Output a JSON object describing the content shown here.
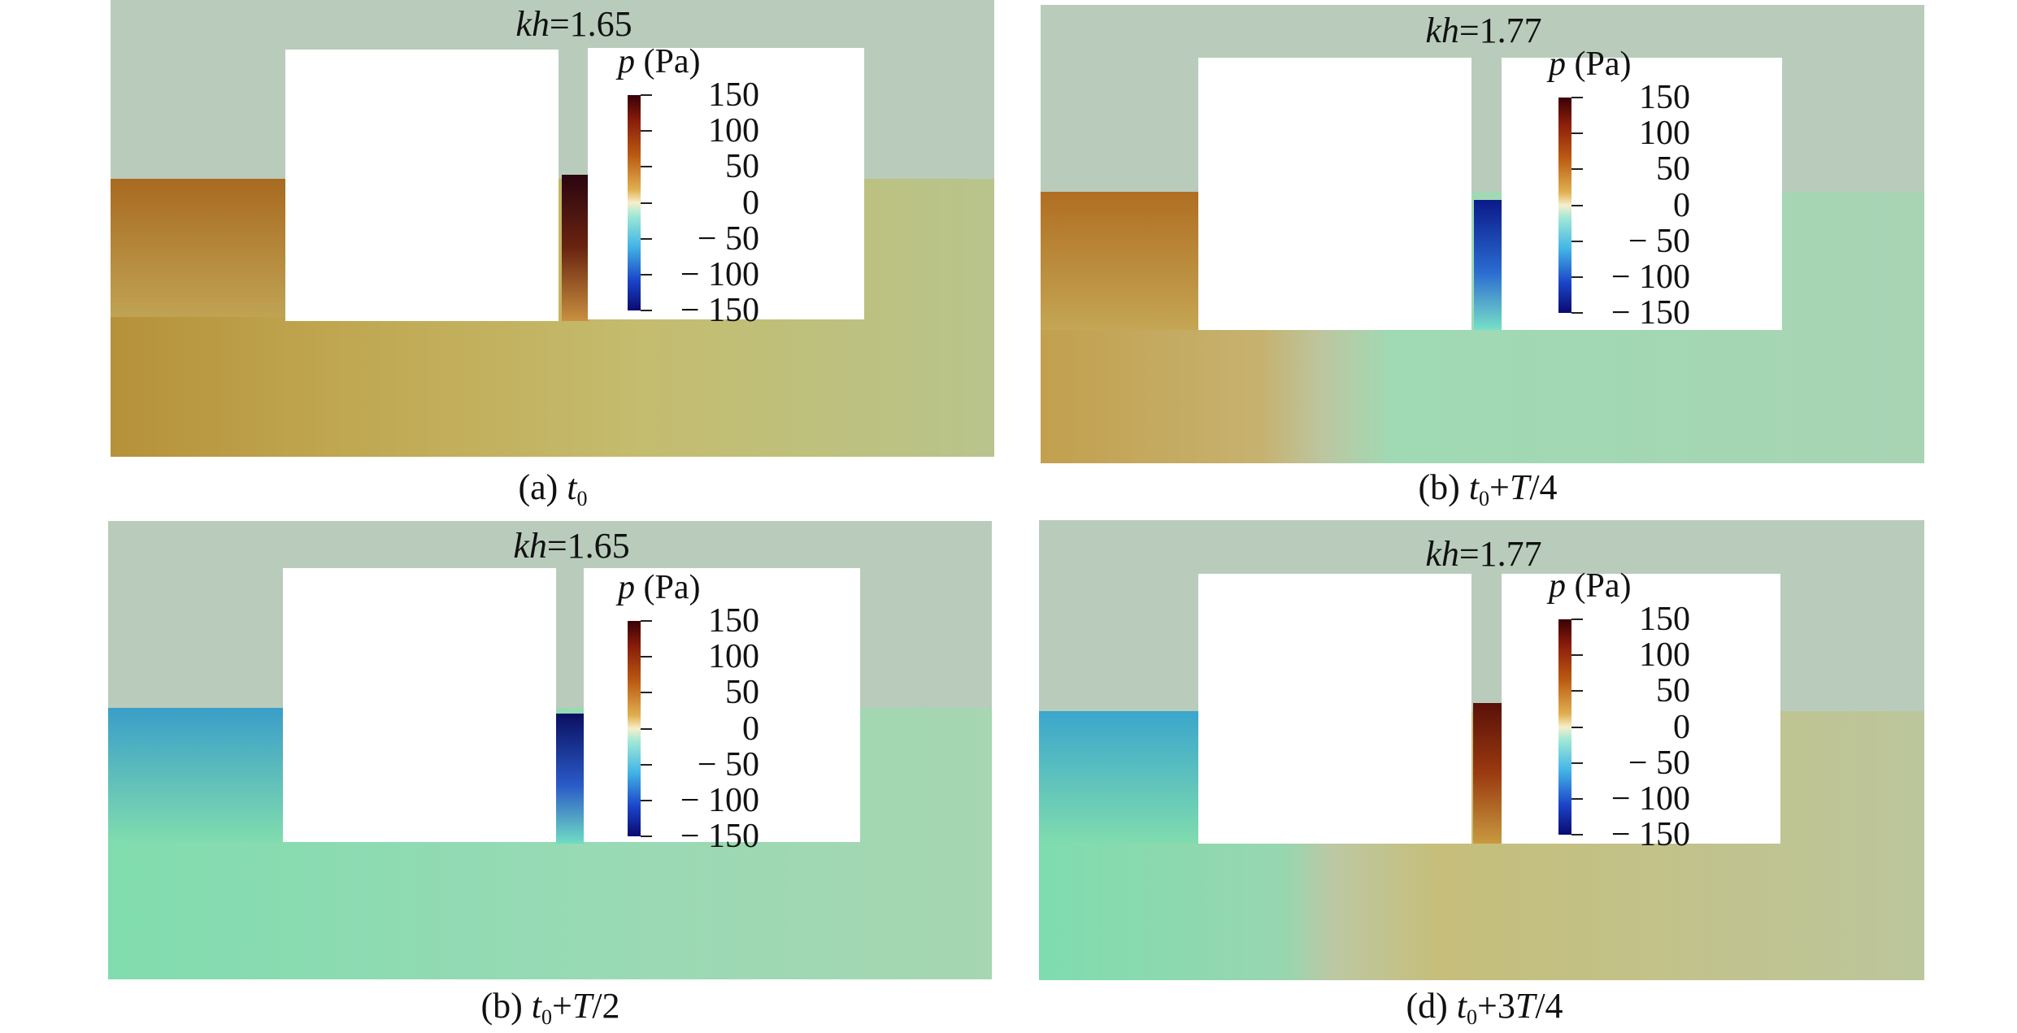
{
  "legend": {
    "title_symbol": "p",
    "title_unit": "(Pa)",
    "ticks": [
      "150",
      "100",
      "50",
      "0",
      "− 50",
      "− 100",
      "− 150"
    ]
  },
  "panels": [
    {
      "kh": "=1.65",
      "caption_prefix": "(a) ",
      "caption_suffix": ""
    },
    {
      "kh": "=1.77",
      "caption_prefix": "(b) ",
      "caption_suffix": "+T/4"
    },
    {
      "kh": "=1.65",
      "caption_prefix": "(b) ",
      "caption_suffix": "+T/2"
    },
    {
      "kh": "=1.77",
      "caption_prefix": "(d) ",
      "caption_suffix": "+3T/4"
    }
  ],
  "symbols": {
    "kh": "kh",
    "t": "t",
    "sub0": "0"
  },
  "colors": {
    "air": "#b9ccbc",
    "positive_water": "#c4b87a",
    "negative_water": "#86dcb0",
    "gap_high": "#3a0a10",
    "gap_low": "#0b1a8a"
  }
}
